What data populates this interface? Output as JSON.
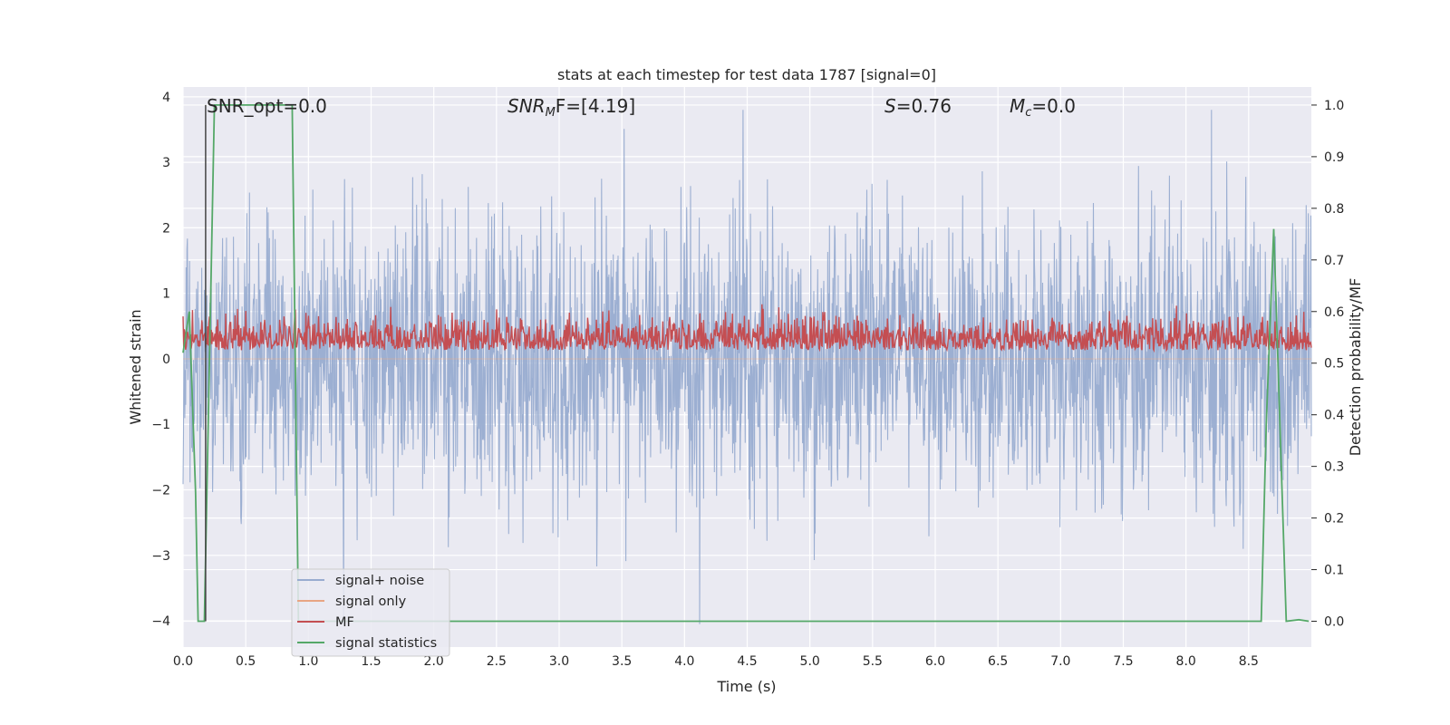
{
  "chart_data": {
    "type": "line",
    "title": "stats at each timestep for test data 1787 [signal=0]",
    "xlabel": "Time (s)",
    "ylabel_left": "Whitened strain",
    "ylabel_right": "Detection probability/MF",
    "xlim": [
      0,
      9.0
    ],
    "ylim_left": [
      -4.4,
      4.15
    ],
    "ylim_right": [
      -0.05,
      1.035
    ],
    "x_ticks": [
      "0.0",
      "0.5",
      "1.0",
      "1.5",
      "2.0",
      "2.5",
      "3.0",
      "3.5",
      "4.0",
      "4.5",
      "5.0",
      "5.5",
      "6.0",
      "6.5",
      "7.0",
      "7.5",
      "8.0",
      "8.5"
    ],
    "y_ticks_left": [
      "−4",
      "−3",
      "−2",
      "−1",
      "0",
      "1",
      "2",
      "3",
      "4"
    ],
    "y_ticks_right": [
      "0.0",
      "0.1",
      "0.2",
      "0.3",
      "0.4",
      "0.5",
      "0.6",
      "0.7",
      "0.8",
      "0.9",
      "1.0"
    ],
    "grid": true,
    "legend_placement": "lower-left",
    "annotations": {
      "snr_opt": "SNR_opt=0.0",
      "snr_mf_sym": "SNR",
      "snr_mf_sub": "M",
      "snr_mf_rest": "F=[4.19]",
      "s_sym": "S",
      "s_rest": "=0.76",
      "mc_sym": "M",
      "mc_sub": "c",
      "mc_rest": "=0.0"
    },
    "series": [
      {
        "name": "signal+ noise",
        "color": "#98acd0",
        "axis": "left",
        "description_level": "noise band approx ±2.5, peaks ±3.8"
      },
      {
        "name": "signal only",
        "color": "#e8a583",
        "axis": "left",
        "values_flat": 0
      },
      {
        "name": "MF",
        "color": "#c44e52",
        "axis": "right",
        "range": [
          0.52,
          0.62
        ]
      },
      {
        "name": "signal statistics",
        "color": "#55a868",
        "axis": "right",
        "x": [
          0.0,
          0.05,
          0.1,
          0.12,
          0.17,
          0.22,
          0.25,
          0.87,
          0.92,
          1.0,
          8.6,
          8.64,
          8.7,
          8.76,
          8.8,
          8.9,
          8.98
        ],
        "y": [
          0.52,
          0.6,
          0.25,
          0.0,
          0.0,
          0.62,
          1.0,
          1.0,
          0.0,
          0.0,
          0.0,
          0.38,
          0.76,
          0.3,
          0.0,
          0.003,
          0.0
        ]
      }
    ],
    "vertical_marker": {
      "x": 0.18,
      "color": "#444444"
    }
  },
  "legend": {
    "item1": "signal+ noise",
    "item2": "signal only",
    "item3": "MF",
    "item4": "signal statistics"
  }
}
